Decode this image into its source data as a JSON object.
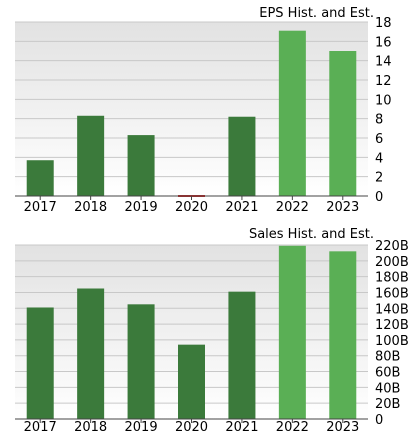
{
  "colors": {
    "actual": "#3b7a3b",
    "estimate": "#5aaf55",
    "negative": "#cc2222",
    "grid": "#c8c8c8",
    "plot_bg_top": "#e2e2e2",
    "plot_bg_bottom": "#ffffff",
    "axis": "#444444"
  },
  "chart_data": [
    {
      "type": "bar",
      "title": "EPS Hist. and Est.",
      "categories": [
        "2017",
        "2018",
        "2019",
        "2020",
        "2021",
        "2022",
        "2023"
      ],
      "values": [
        3.7,
        8.3,
        6.3,
        -0.3,
        8.2,
        17.1,
        15.0
      ],
      "estimate": [
        false,
        false,
        false,
        false,
        false,
        true,
        true
      ],
      "ylim": [
        0,
        18
      ],
      "yticks": [
        0,
        2,
        4,
        6,
        8,
        10,
        12,
        14,
        16,
        18
      ],
      "ytick_labels": [
        "0",
        "2",
        "4",
        "6",
        "8",
        "10",
        "12",
        "14",
        "16",
        "18"
      ],
      "grid": true
    },
    {
      "type": "bar",
      "title": "Sales Hist. and Est.",
      "categories": [
        "2017",
        "2018",
        "2019",
        "2020",
        "2021",
        "2022",
        "2023"
      ],
      "values": [
        141,
        165,
        145,
        94,
        161,
        219,
        212
      ],
      "estimate": [
        false,
        false,
        false,
        false,
        false,
        true,
        true
      ],
      "ylim": [
        0,
        220
      ],
      "yticks": [
        0,
        20,
        40,
        60,
        80,
        100,
        120,
        140,
        160,
        180,
        200,
        220
      ],
      "ytick_labels": [
        "0",
        "20B",
        "40B",
        "60B",
        "80B",
        "100B",
        "120B",
        "140B",
        "160B",
        "180B",
        "200B",
        "220B"
      ],
      "grid": true
    }
  ]
}
